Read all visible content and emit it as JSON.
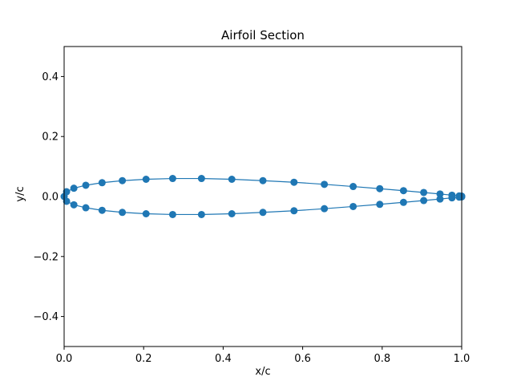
{
  "chart_data": {
    "type": "line",
    "title": "Airfoil Section",
    "xlabel": "x/c",
    "ylabel": "y/c",
    "xlim": [
      0.0,
      1.0
    ],
    "ylim": [
      -0.5,
      0.5
    ],
    "xticks": [
      "0.0",
      "0.2",
      "0.4",
      "0.6",
      "0.8",
      "1.0"
    ],
    "yticks": [
      "−0.4",
      "−0.2",
      "0.0",
      "0.2",
      "0.4"
    ],
    "grid": false,
    "color": "#1f77b4",
    "markers": true,
    "x": [
      1.0,
      0.9938,
      0.9755,
      0.9455,
      0.9045,
      0.8536,
      0.7939,
      0.727,
      0.6545,
      0.5782,
      0.5,
      0.4218,
      0.3455,
      0.273,
      0.2061,
      0.1464,
      0.0955,
      0.0545,
      0.0245,
      0.0062,
      0.0,
      0.0062,
      0.0245,
      0.0545,
      0.0955,
      0.1464,
      0.2061,
      0.273,
      0.3455,
      0.4218,
      0.5,
      0.5782,
      0.6545,
      0.727,
      0.7939,
      0.8536,
      0.9045,
      0.9455,
      0.9755,
      0.9938,
      1.0
    ],
    "y": [
      0.0013,
      0.0021,
      0.0045,
      0.0084,
      0.0134,
      0.0194,
      0.0261,
      0.0333,
      0.0406,
      0.0475,
      0.0529,
      0.0575,
      0.06,
      0.06,
      0.0575,
      0.0529,
      0.0461,
      0.0375,
      0.0276,
      0.016,
      0.0,
      -0.016,
      -0.0276,
      -0.0375,
      -0.0461,
      -0.0529,
      -0.0575,
      -0.06,
      -0.06,
      -0.0575,
      -0.0529,
      -0.0475,
      -0.0406,
      -0.0333,
      -0.0261,
      -0.0194,
      -0.0134,
      -0.0084,
      -0.0045,
      -0.0021,
      -0.0013
    ]
  }
}
